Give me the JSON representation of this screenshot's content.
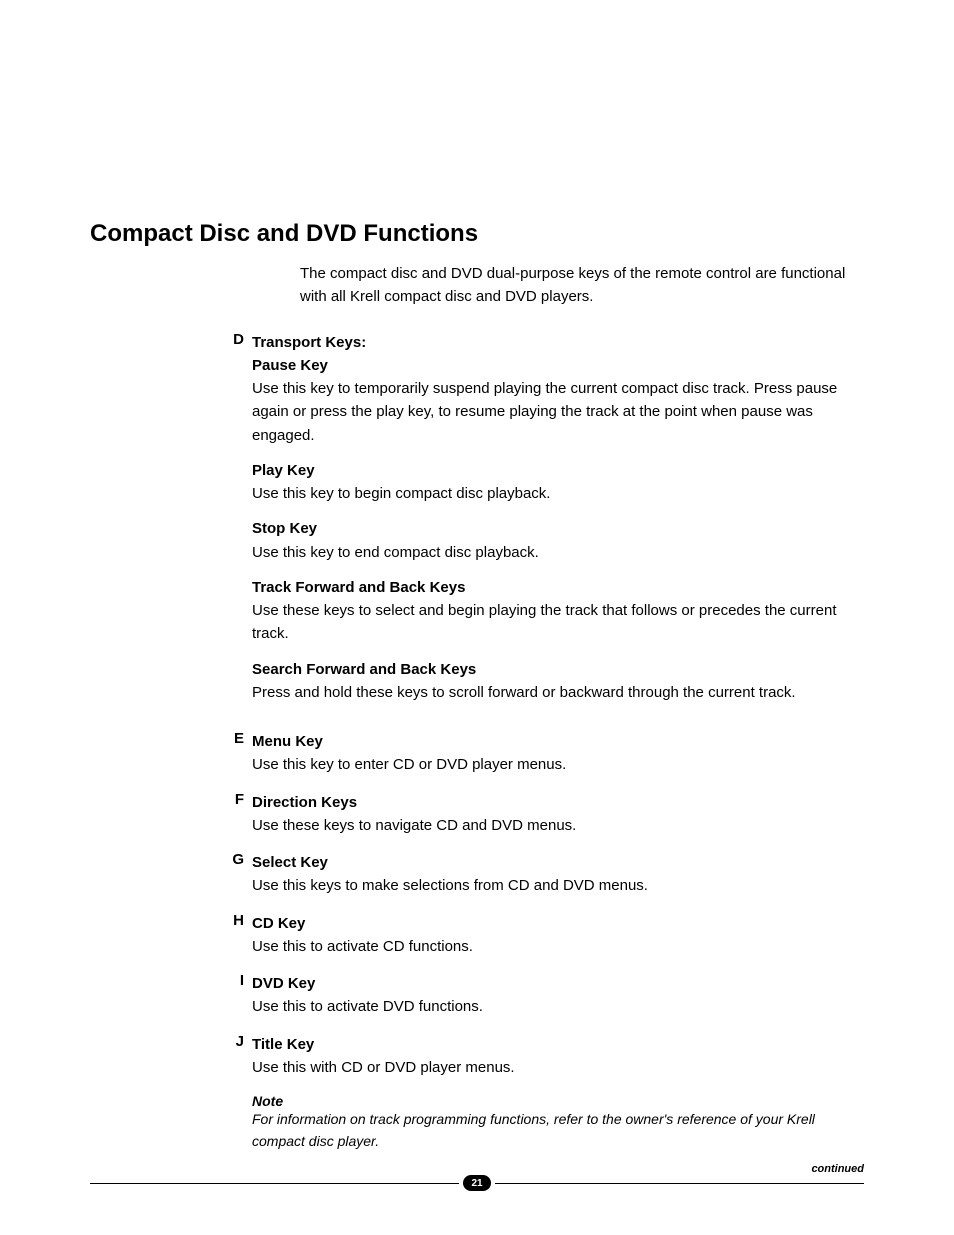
{
  "typography": {
    "font_family": "Helvetica, Arial, sans-serif",
    "title_fontsize_pt": 18,
    "body_fontsize_pt": 11,
    "note_fontsize_pt": 10,
    "line_height": 1.55,
    "text_color": "#000000",
    "background_color": "#ffffff"
  },
  "title": "Compact Disc and DVD Functions",
  "intro": "The compact disc and DVD dual-purpose keys of the remote control are functional with all Krell compact disc and DVD players.",
  "sections": [
    {
      "letter": "D",
      "title": "Transport Keys:",
      "subs": [
        {
          "title": "Pause Key",
          "body": "Use this key to temporarily suspend playing the current compact disc track. Press pause again or press the play key, to resume playing the track at the point when pause was engaged."
        },
        {
          "title": "Play Key",
          "body": "Use this key to begin compact disc playback."
        },
        {
          "title": "Stop Key",
          "body": "Use this key to end compact disc playback."
        },
        {
          "title": "Track Forward and Back Keys",
          "body": "Use these keys to select and begin playing the track that follows or precedes the current track."
        },
        {
          "title": "Search Forward and Back Keys",
          "body": "Press and hold these keys to scroll forward or backward through the current track."
        }
      ]
    },
    {
      "letter": "E",
      "title": "Menu Key",
      "body": "Use this key to enter CD or DVD player menus."
    },
    {
      "letter": "F",
      "title": "Direction Keys",
      "body": "Use these keys to navigate CD and DVD menus."
    },
    {
      "letter": "G",
      "title": "Select Key",
      "body": "Use this keys to make selections from CD and DVD menus."
    },
    {
      "letter": "H",
      "title": "CD Key",
      "body": "Use this to activate CD functions."
    },
    {
      "letter": "I",
      "title": "DVD Key",
      "body": "Use this to activate DVD functions."
    },
    {
      "letter": "J",
      "title": "Title Key",
      "body": "Use this with CD or DVD player menus."
    }
  ],
  "note": {
    "label": "Note",
    "body": "For information on track programming functions, refer to the owner's reference of your Krell compact disc player."
  },
  "footer": {
    "page_number": "21",
    "continued_label": "continued",
    "badge_bg": "#000000",
    "badge_fg": "#ffffff",
    "rule_color": "#000000"
  }
}
